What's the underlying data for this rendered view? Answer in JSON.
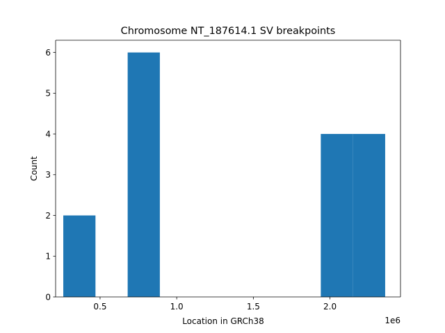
{
  "chart_data": {
    "type": "bar",
    "title": "Chromosome NT_187614.1 SV breakpoints",
    "xlabel": "Location in GRCh38",
    "ylabel": "Count",
    "x_offset_label": "1e6",
    "x_scale": 1000000,
    "xlim": [
      0.21,
      2.46
    ],
    "ylim": [
      0,
      6.3
    ],
    "x_ticks": [
      0.5,
      1.0,
      1.5,
      2.0
    ],
    "x_tick_labels": [
      "0.5",
      "1.0",
      "1.5",
      "2.0"
    ],
    "y_ticks": [
      0,
      1,
      2,
      3,
      4,
      5,
      6
    ],
    "y_tick_labels": [
      "0",
      "1",
      "2",
      "3",
      "4",
      "5",
      "6"
    ],
    "bins": [
      {
        "start": 0.26,
        "end": 0.47,
        "count": 2
      },
      {
        "start": 0.47,
        "end": 0.68,
        "count": 0
      },
      {
        "start": 0.68,
        "end": 0.89,
        "count": 6
      },
      {
        "start": 0.89,
        "end": 1.1,
        "count": 0
      },
      {
        "start": 1.1,
        "end": 1.31,
        "count": 0
      },
      {
        "start": 1.31,
        "end": 1.52,
        "count": 0
      },
      {
        "start": 1.52,
        "end": 1.73,
        "count": 0
      },
      {
        "start": 1.73,
        "end": 1.94,
        "count": 0
      },
      {
        "start": 1.94,
        "end": 2.15,
        "count": 4
      },
      {
        "start": 2.15,
        "end": 2.36,
        "count": 4
      }
    ],
    "bar_color": "#1f77b4",
    "grid": false,
    "legend": "none"
  }
}
